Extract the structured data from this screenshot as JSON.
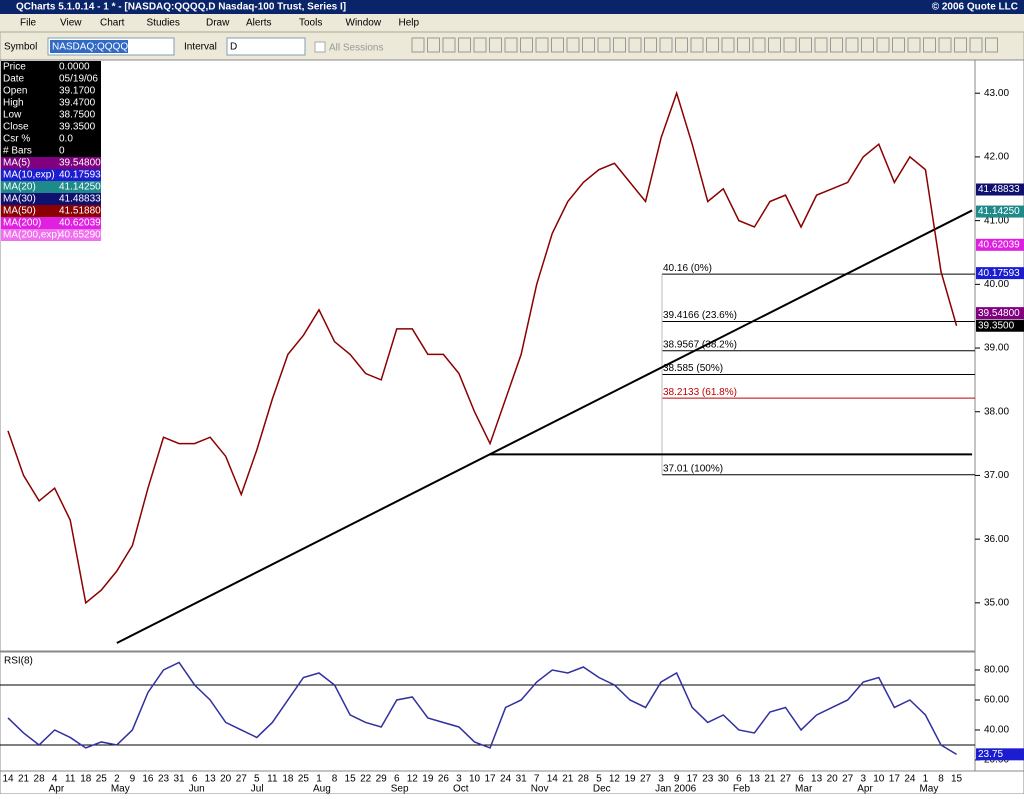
{
  "window": {
    "title": "QCharts 5.1.0.14 - 1 * - [NASDAQ:QQQQ,D Nasdaq-100 Trust, Series I]",
    "copyright": "© 2006 Quote LLC"
  },
  "menu": [
    "File",
    "View",
    "Chart",
    "Studies",
    "Draw",
    "Alerts",
    "Tools",
    "Window",
    "Help"
  ],
  "toolbar": {
    "symbol_label": "Symbol",
    "symbol": "NASDAQ:QQQQ",
    "interval_label": "Interval",
    "interval": "D",
    "all_sessions": "All Sessions"
  },
  "info_panel": [
    {
      "label": "Price",
      "value": "0.0000",
      "color": "#000000"
    },
    {
      "label": "Date",
      "value": "05/19/06",
      "color": "#000000"
    },
    {
      "label": "Open",
      "value": "39.1700",
      "color": "#000000"
    },
    {
      "label": "High",
      "value": "39.4700",
      "color": "#000000"
    },
    {
      "label": "Low",
      "value": "38.7500",
      "color": "#000000"
    },
    {
      "label": "Close",
      "value": "39.3500",
      "color": "#000000"
    },
    {
      "label": "Csr %",
      "value": "0.0",
      "color": "#000000"
    },
    {
      "label": "# Bars",
      "value": "0",
      "color": "#000000"
    },
    {
      "label": "MA(5)",
      "value": "39.54800",
      "color": "#800080"
    },
    {
      "label": "MA(10,exp)",
      "value": "40.17593",
      "color": "#1c1cd0"
    },
    {
      "label": "MA(20)",
      "value": "41.14250",
      "color": "#1e8a8a"
    },
    {
      "label": "MA(30)",
      "value": "41.48833",
      "color": "#101070"
    },
    {
      "label": "MA(50)",
      "value": "41.51880",
      "color": "#8b0000"
    },
    {
      "label": "MA(200)",
      "value": "40.62039",
      "color": "#e020e0"
    },
    {
      "label": "MA(200,exp)",
      "value": "40.65290",
      "color": "#f070f0"
    }
  ],
  "chart_data": {
    "type": "line",
    "categories": [
      "14",
      "21",
      "28",
      "4",
      "11",
      "18",
      "25",
      "2",
      "9",
      "16",
      "23",
      "31",
      "6",
      "13",
      "20",
      "27",
      "5",
      "11",
      "18",
      "25",
      "1",
      "8",
      "15",
      "22",
      "29",
      "6",
      "12",
      "19",
      "26",
      "3",
      "10",
      "17",
      "24",
      "31",
      "7",
      "14",
      "21",
      "28",
      "5",
      "12",
      "19",
      "27",
      "3",
      "9",
      "17",
      "23",
      "30",
      "6",
      "13",
      "21",
      "27",
      "6",
      "13",
      "20",
      "27",
      "3",
      "10",
      "17",
      "24",
      "1",
      "8",
      "15"
    ],
    "months": [
      null,
      null,
      null,
      "Apr",
      null,
      null,
      null,
      "May",
      null,
      null,
      null,
      null,
      "Jun",
      null,
      null,
      null,
      "Jul",
      null,
      null,
      null,
      "Aug",
      null,
      null,
      null,
      null,
      "Sep",
      null,
      null,
      null,
      "Oct",
      null,
      null,
      null,
      null,
      "Nov",
      null,
      null,
      null,
      "Dec",
      null,
      null,
      null,
      "Jan 2006",
      null,
      null,
      null,
      null,
      "Feb",
      null,
      null,
      null,
      "Mar",
      null,
      null,
      null,
      "Apr",
      null,
      null,
      null,
      "May",
      null,
      null
    ],
    "closes": [
      37.7,
      37.0,
      36.6,
      36.8,
      36.3,
      35.0,
      35.2,
      35.5,
      35.9,
      36.8,
      37.6,
      37.5,
      37.5,
      37.6,
      37.3,
      36.7,
      37.4,
      38.2,
      38.9,
      39.2,
      39.6,
      39.1,
      38.9,
      38.6,
      38.5,
      39.3,
      39.3,
      38.9,
      38.9,
      38.6,
      38.0,
      37.5,
      38.2,
      38.9,
      40.0,
      40.8,
      41.3,
      41.6,
      41.8,
      41.9,
      41.6,
      41.3,
      42.3,
      43.0,
      42.2,
      41.3,
      41.5,
      41.0,
      40.9,
      41.3,
      41.4,
      40.9,
      41.4,
      41.5,
      41.6,
      42.0,
      42.2,
      41.6,
      42.0,
      41.8,
      40.2,
      39.35
    ],
    "color": "#8b0000",
    "ylim": [
      34.26,
      43.49
    ],
    "yticks": [
      {
        "value": 35,
        "label": "35.00"
      },
      {
        "value": 36,
        "label": "36.00"
      },
      {
        "value": 37,
        "label": "37.00"
      },
      {
        "value": 38,
        "label": "38.00"
      },
      {
        "value": 39,
        "label": "39.00"
      },
      {
        "value": 40,
        "label": "40.00"
      },
      {
        "value": 41,
        "label": "41.00"
      },
      {
        "value": 42,
        "label": "42.00"
      },
      {
        "value": 43,
        "label": "43.00"
      }
    ],
    "price_labels": [
      {
        "value": 41.48833,
        "label": "41.48833",
        "color": "#101070"
      },
      {
        "value": 41.1425,
        "label": "41.14250",
        "color": "#1e8a8a"
      },
      {
        "value": 40.62039,
        "label": "40.62039",
        "color": "#e020e0"
      },
      {
        "value": 40.17593,
        "label": "40.17593",
        "color": "#1c1cd0"
      },
      {
        "value": 39.548,
        "label": "39.54800",
        "color": "#800080"
      },
      {
        "value": 39.35,
        "label": "39.3500",
        "color": "#000000"
      }
    ],
    "fib_levels": [
      {
        "value": 40.16,
        "label": "40.16 (0%)",
        "color": "#000000"
      },
      {
        "value": 39.4166,
        "label": "39.4166 (23.6%)",
        "color": "#000000"
      },
      {
        "value": 38.9567,
        "label": "38.9567 (38.2%)",
        "color": "#000000"
      },
      {
        "value": 38.585,
        "label": "38.585 (50%)",
        "color": "#000000"
      },
      {
        "value": 38.2133,
        "label": "38.2133 (61.8%)",
        "color": "#c00000"
      },
      {
        "value": 37.01,
        "label": "37.01 (100%)",
        "color": "#000000"
      }
    ],
    "trend_line": {
      "x": [
        7,
        62
      ],
      "y": [
        34.37,
        41.16
      ]
    },
    "support_line": {
      "x": [
        31,
        62
      ],
      "y": [
        37.33,
        37.33
      ]
    },
    "rsi": {
      "title": "RSI(8)",
      "values": [
        48,
        38,
        30,
        40,
        35,
        28,
        32,
        30,
        40,
        65,
        80,
        85,
        70,
        60,
        45,
        40,
        35,
        45,
        60,
        75,
        78,
        70,
        50,
        45,
        42,
        60,
        62,
        48,
        45,
        42,
        32,
        28,
        55,
        60,
        72,
        80,
        78,
        82,
        75,
        70,
        60,
        55,
        72,
        78,
        55,
        45,
        50,
        40,
        38,
        52,
        55,
        40,
        50,
        55,
        60,
        72,
        75,
        55,
        60,
        50,
        30,
        23.75
      ],
      "last_label": "23.75",
      "color": "#3030a0",
      "ylim": [
        13.3,
        90
      ],
      "yticks": [
        {
          "value": 20,
          "label": "20.00"
        },
        {
          "value": 40,
          "label": "40.00"
        },
        {
          "value": 60,
          "label": "60.00"
        },
        {
          "value": 80,
          "label": "80.00"
        }
      ],
      "levels": [
        30,
        70
      ]
    }
  }
}
